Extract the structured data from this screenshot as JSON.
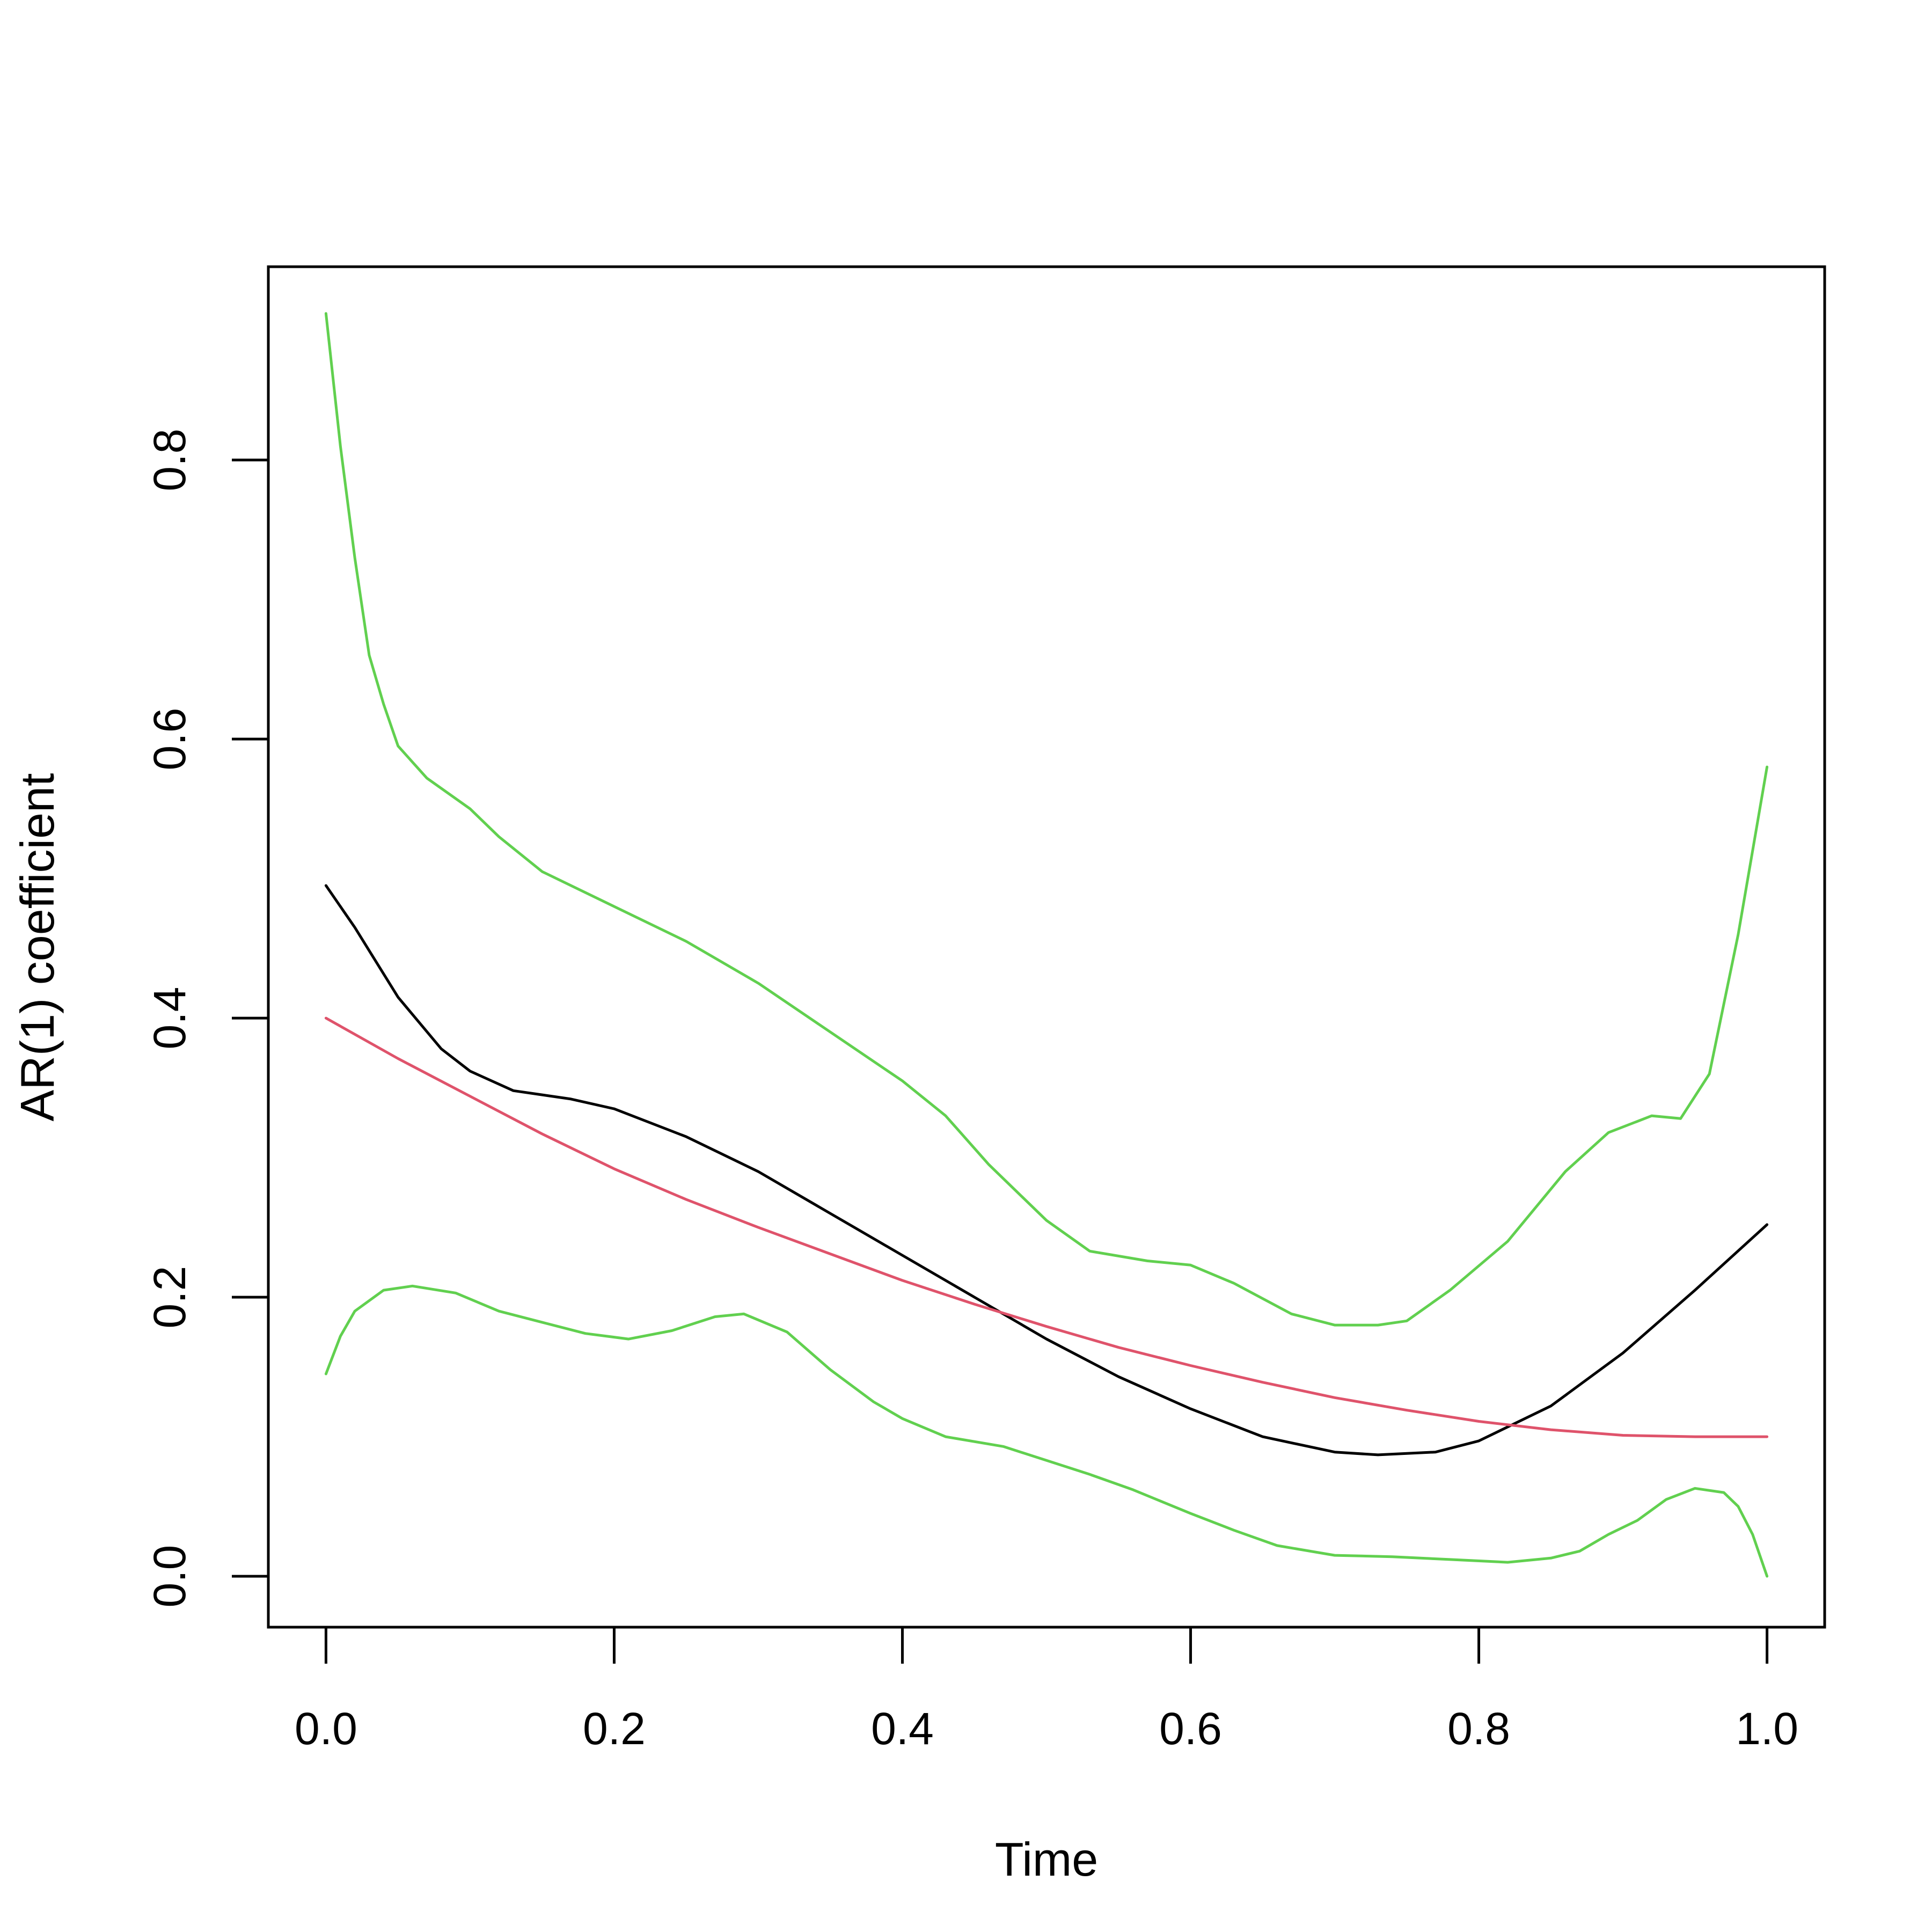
{
  "chart_data": {
    "type": "line",
    "title": "",
    "xlabel": "Time",
    "ylabel": "AR(1) coefficient",
    "xlim": [
      -0.04,
      1.04
    ],
    "ylim": [
      -0.0365,
      0.9385
    ],
    "grid": false,
    "legend": "none",
    "xticks": [
      0.0,
      0.2,
      0.4,
      0.6,
      0.8,
      1.0
    ],
    "xtick_labels": [
      "0.0",
      "0.2",
      "0.4",
      "0.6",
      "0.8",
      "1.0"
    ],
    "yticks": [
      0.0,
      0.2,
      0.4,
      0.6,
      0.8
    ],
    "ytick_labels": [
      "0.0",
      "0.2",
      "0.4",
      "0.6",
      "0.8"
    ],
    "series": [
      {
        "color": "#000000",
        "x": [
          0.0,
          0.02,
          0.05,
          0.08,
          0.1,
          0.13,
          0.17,
          0.2,
          0.25,
          0.3,
          0.35,
          0.4,
          0.45,
          0.5,
          0.55,
          0.6,
          0.65,
          0.7,
          0.73,
          0.77,
          0.8,
          0.85,
          0.9,
          0.95,
          1.0
        ],
        "y": [
          0.495,
          0.465,
          0.415,
          0.378,
          0.362,
          0.348,
          0.342,
          0.335,
          0.315,
          0.29,
          0.26,
          0.23,
          0.2,
          0.17,
          0.143,
          0.12,
          0.1,
          0.089,
          0.087,
          0.089,
          0.097,
          0.122,
          0.16,
          0.205,
          0.252
        ]
      },
      {
        "color": "#df536b",
        "x": [
          0.0,
          0.05,
          0.1,
          0.15,
          0.2,
          0.25,
          0.3,
          0.35,
          0.4,
          0.45,
          0.5,
          0.55,
          0.6,
          0.65,
          0.7,
          0.75,
          0.8,
          0.85,
          0.9,
          0.95,
          1.0
        ],
        "y": [
          0.4,
          0.371,
          0.344,
          0.317,
          0.292,
          0.27,
          0.25,
          0.231,
          0.212,
          0.195,
          0.179,
          0.164,
          0.151,
          0.139,
          0.128,
          0.119,
          0.111,
          0.105,
          0.101,
          0.1,
          0.1
        ]
      },
      {
        "color": "#61d04f",
        "x": [
          0.0,
          0.01,
          0.02,
          0.03,
          0.04,
          0.05,
          0.07,
          0.1,
          0.12,
          0.15,
          0.2,
          0.25,
          0.3,
          0.35,
          0.4,
          0.43,
          0.46,
          0.5,
          0.53,
          0.57,
          0.6,
          0.63,
          0.67,
          0.7,
          0.73,
          0.75,
          0.78,
          0.82,
          0.86,
          0.89,
          0.92,
          0.94,
          0.96,
          0.98,
          1.0
        ],
        "y": [
          0.905,
          0.81,
          0.73,
          0.66,
          0.625,
          0.595,
          0.572,
          0.55,
          0.53,
          0.505,
          0.48,
          0.455,
          0.425,
          0.39,
          0.355,
          0.33,
          0.295,
          0.255,
          0.233,
          0.226,
          0.223,
          0.21,
          0.188,
          0.18,
          0.18,
          0.183,
          0.205,
          0.24,
          0.29,
          0.318,
          0.33,
          0.328,
          0.36,
          0.46,
          0.58
        ]
      },
      {
        "color": "#61d04f",
        "x": [
          0.0,
          0.01,
          0.02,
          0.04,
          0.06,
          0.09,
          0.12,
          0.15,
          0.18,
          0.21,
          0.24,
          0.27,
          0.29,
          0.32,
          0.35,
          0.38,
          0.4,
          0.43,
          0.47,
          0.5,
          0.53,
          0.56,
          0.6,
          0.63,
          0.66,
          0.7,
          0.74,
          0.78,
          0.82,
          0.85,
          0.87,
          0.89,
          0.91,
          0.93,
          0.95,
          0.97,
          0.98,
          0.99,
          1.0
        ],
        "y": [
          0.145,
          0.172,
          0.19,
          0.205,
          0.208,
          0.203,
          0.19,
          0.182,
          0.174,
          0.17,
          0.176,
          0.186,
          0.188,
          0.175,
          0.148,
          0.125,
          0.113,
          0.1,
          0.093,
          0.083,
          0.073,
          0.062,
          0.045,
          0.033,
          0.022,
          0.015,
          0.014,
          0.012,
          0.01,
          0.013,
          0.018,
          0.03,
          0.04,
          0.055,
          0.063,
          0.06,
          0.05,
          0.03,
          0.0
        ]
      }
    ]
  }
}
